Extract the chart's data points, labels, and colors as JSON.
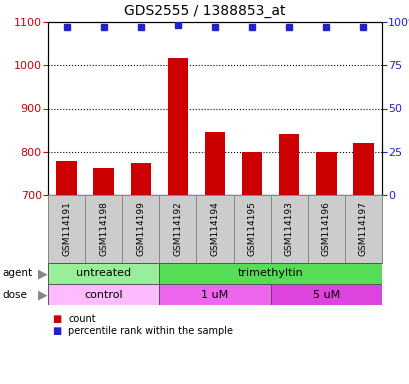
{
  "title": "GDS2555 / 1388853_at",
  "samples": [
    "GSM114191",
    "GSM114198",
    "GSM114199",
    "GSM114192",
    "GSM114194",
    "GSM114195",
    "GSM114193",
    "GSM114196",
    "GSM114197"
  ],
  "bar_values": [
    778,
    762,
    773,
    1017,
    845,
    800,
    840,
    800,
    820
  ],
  "percentile_values": [
    97,
    97,
    97,
    98,
    97,
    97,
    97,
    97,
    97
  ],
  "bar_color": "#cc0000",
  "dot_color": "#2222cc",
  "ylim_left": [
    700,
    1100
  ],
  "ylim_right": [
    0,
    100
  ],
  "yticks_left": [
    700,
    800,
    900,
    1000,
    1100
  ],
  "yticks_right": [
    0,
    25,
    50,
    75,
    100
  ],
  "agent_groups": [
    {
      "label": "untreated",
      "start": 0,
      "end": 3,
      "color": "#99ee99"
    },
    {
      "label": "trimethyltin",
      "start": 3,
      "end": 9,
      "color": "#55dd55"
    }
  ],
  "dose_groups": [
    {
      "label": "control",
      "start": 0,
      "end": 3,
      "color": "#ffbbff"
    },
    {
      "label": "1 uM",
      "start": 3,
      "end": 6,
      "color": "#ee66ee"
    },
    {
      "label": "5 uM",
      "start": 6,
      "end": 9,
      "color": "#dd44dd"
    }
  ],
  "legend_items": [
    {
      "label": "count",
      "color": "#cc0000"
    },
    {
      "label": "percentile rank within the sample",
      "color": "#2222cc"
    }
  ],
  "grid_color": "#000000",
  "tick_label_color_left": "#cc0000",
  "tick_label_color_right": "#2222cc",
  "sample_bg_color": "#cccccc",
  "sample_label_color": "#000000",
  "background_color": "#ffffff"
}
